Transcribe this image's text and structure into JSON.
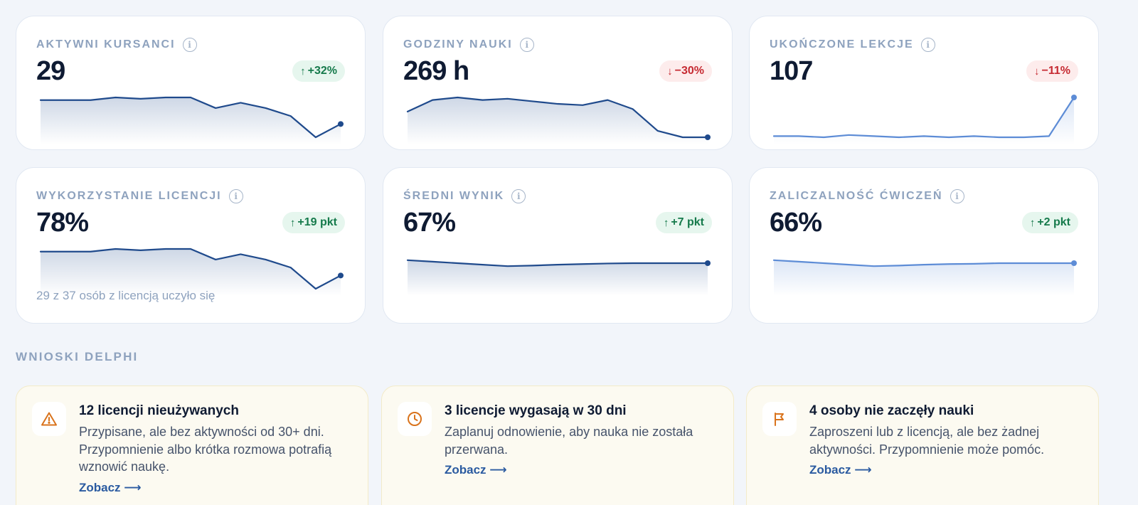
{
  "colors": {
    "spark_dark": "#1f4a8c",
    "spark_light": "#5d8cd6",
    "up": "#157a4b",
    "down": "#c62a32",
    "link": "#2a5aa0",
    "warn": "#d9731c"
  },
  "kpis": [
    {
      "title": "AKTYWNI KURSANCI",
      "value": "29",
      "badge": {
        "direction": "up",
        "arrow": "↑",
        "text": "+32%"
      },
      "icon": "info-icon",
      "note": "",
      "sparkline": {
        "color": "spark_dark",
        "values": [
          30,
          30,
          30,
          31,
          30.5,
          31,
          31,
          27,
          29,
          27,
          24,
          16,
          21
        ]
      }
    },
    {
      "title": "GODZINY NAUKI",
      "value": "269 h",
      "badge": {
        "direction": "down",
        "arrow": "↓",
        "text": "−30%"
      },
      "icon": "info-icon",
      "note": "",
      "sparkline": {
        "color": "spark_dark",
        "values": [
          31,
          40,
          42,
          40,
          41,
          39,
          37,
          36,
          40,
          33,
          16,
          11,
          11
        ]
      }
    },
    {
      "title": "UKOŃCZONE LEKCJE",
      "value": "107",
      "badge": {
        "direction": "down",
        "arrow": "↓",
        "text": "−11%"
      },
      "icon": "info-icon",
      "note": "",
      "sparkline": {
        "color": "spark_light",
        "values": [
          6,
          6,
          5,
          7,
          6,
          5,
          6,
          5,
          6,
          5,
          5,
          6,
          40
        ]
      }
    },
    {
      "title": "WYKORZYSTANIE LICENCJI",
      "value": "78%",
      "badge": {
        "direction": "up",
        "arrow": "↑",
        "text": "+19 pkt"
      },
      "icon": "info-icon",
      "note": "29 z 37 osób z licencją uczyło się",
      "sparkline": {
        "color": "spark_dark",
        "values": [
          30,
          30,
          30,
          31,
          30.5,
          31,
          31,
          27,
          29,
          27,
          24,
          16,
          21
        ]
      }
    },
    {
      "title": "ŚREDNI WYNIK",
      "value": "67%",
      "badge": {
        "direction": "up",
        "arrow": "↑",
        "text": "+7 pkt"
      },
      "icon": "info-icon",
      "note": "",
      "sparkline": {
        "color": "spark_dark",
        "values": [
          68,
          67.5,
          67,
          66.5,
          66,
          66.2,
          66.5,
          66.7,
          66.9,
          67,
          67,
          67,
          67
        ]
      }
    },
    {
      "title": "ZALICZALNOŚĆ ĆWICZEŃ",
      "value": "66%",
      "badge": {
        "direction": "up",
        "arrow": "↑",
        "text": "+2 pkt"
      },
      "icon": "info-icon",
      "note": "",
      "sparkline": {
        "color": "spark_light",
        "values": [
          67,
          66.5,
          66,
          65.5,
          65,
          65.2,
          65.5,
          65.7,
          65.8,
          66,
          66,
          66,
          66
        ]
      }
    }
  ],
  "insights_section": {
    "title": "WNIOSKI DELPHI"
  },
  "insights": [
    {
      "icon": "warning-triangle-icon",
      "title": "12 licencji nieużywanych",
      "text": "Przypisane, ale bez aktywności od 30+ dni. Przypomnienie albo krótka rozmowa potrafią wznowić naukę.",
      "link": "Zobacz ⟶"
    },
    {
      "icon": "clock-icon",
      "title": "3 licencje wygasają w 30 dni",
      "text": "Zaplanuj odnowienie, aby nauka nie została przerwana.",
      "link": "Zobacz ⟶"
    },
    {
      "icon": "flag-icon",
      "title": "4 osoby nie zaczęły nauki",
      "text": "Zaproszeni lub z licencją, ale bez żadnej aktywności. Przypomnienie może pomóc.",
      "link": "Zobacz ⟶"
    }
  ]
}
